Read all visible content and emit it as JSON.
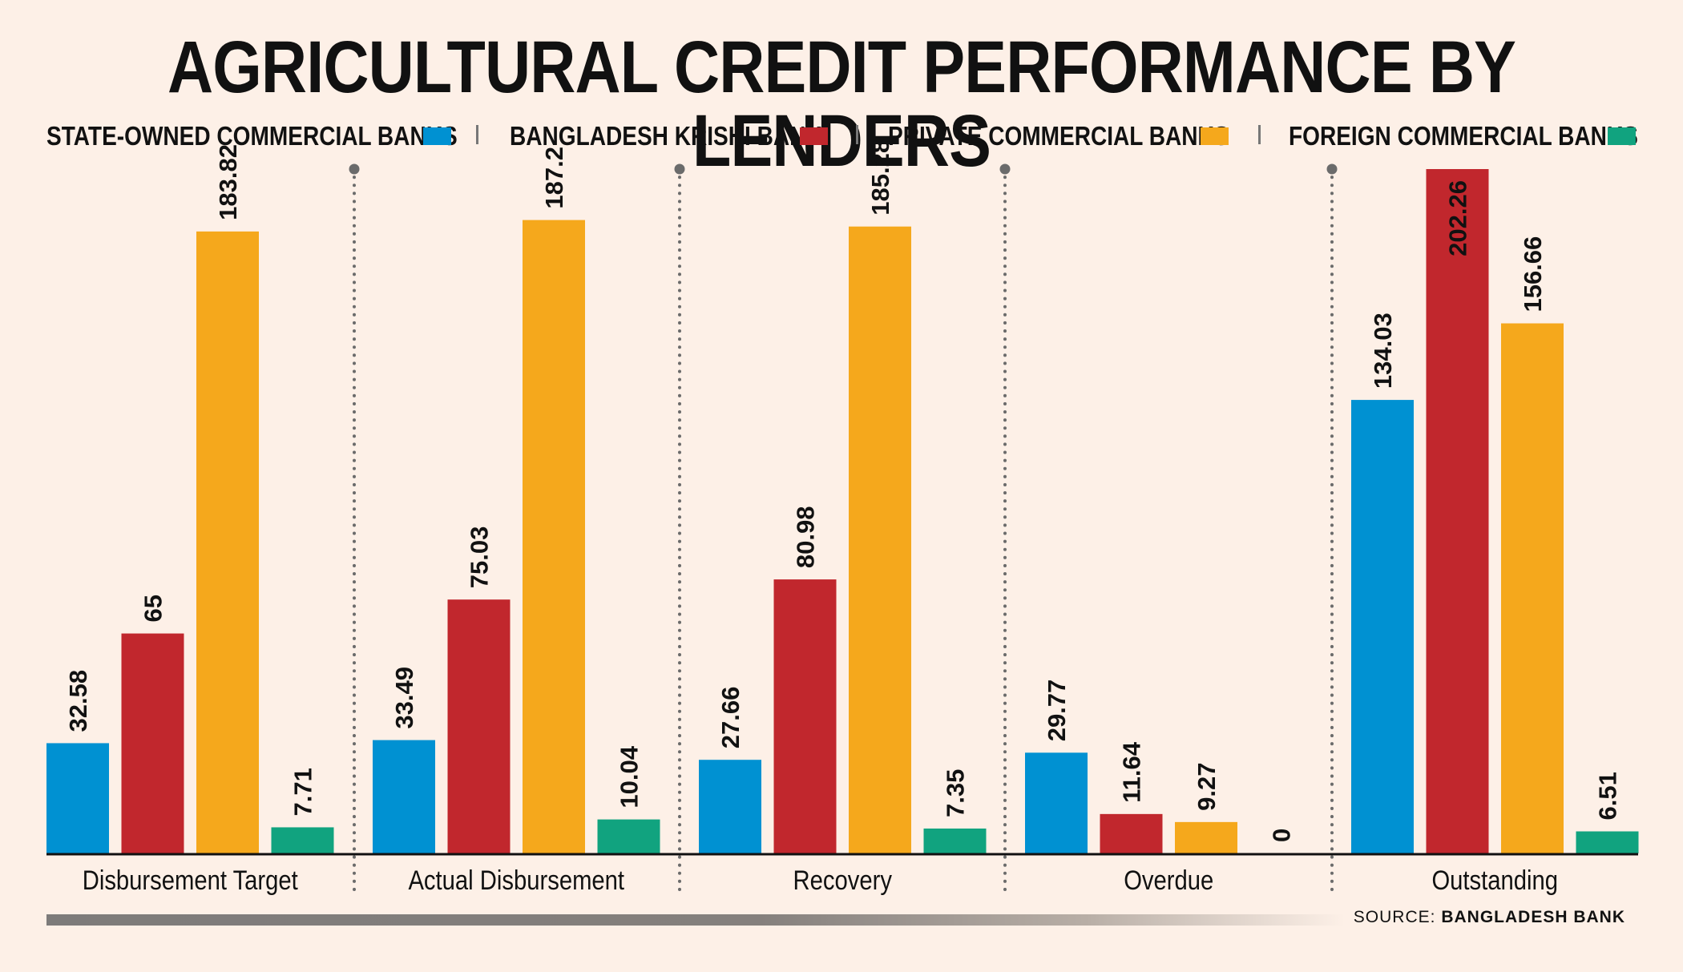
{
  "title": "AGRICULTURAL CREDIT PERFORMANCE BY LENDERS",
  "source": {
    "prefix": "SOURCE:",
    "name": "BANGLADESH BANK"
  },
  "colors": {
    "background": "#fdf0e7",
    "state_owned": "#0091d2",
    "krishi": "#c1272d",
    "private": "#f5a81c",
    "foreign": "#11a37f"
  },
  "chart_data": {
    "type": "bar",
    "title": "AGRICULTURAL CREDIT PERFORMANCE BY LENDERS",
    "xlabel": "",
    "ylabel": "",
    "ylim": [
      0,
      202.26
    ],
    "grid": false,
    "legend_position": "top",
    "categories": [
      "Disbursement Target",
      "Actual Disbursement",
      "Recovery",
      "Overdue",
      "Outstanding"
    ],
    "series": [
      {
        "name": "STATE-OWNED COMMERCIAL BANKS",
        "color": "#0091d2",
        "values": [
          32.58,
          33.49,
          27.66,
          29.77,
          134.03
        ]
      },
      {
        "name": "BANGLADESH KRISHI BANK",
        "color": "#c1272d",
        "values": [
          65,
          75.03,
          80.98,
          11.64,
          202.26
        ]
      },
      {
        "name": "PRIVATE COMMERCIAL BANKS",
        "color": "#f5a81c",
        "values": [
          183.82,
          187.2,
          185.28,
          9.27,
          156.66
        ]
      },
      {
        "name": "FOREIGN COMMERCIAL BANKS",
        "color": "#11a37f",
        "values": [
          7.71,
          10.04,
          7.35,
          0,
          6.51
        ]
      }
    ]
  }
}
